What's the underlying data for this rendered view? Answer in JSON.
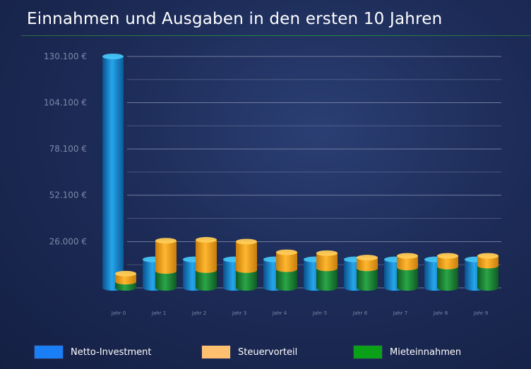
{
  "chart_data": {
    "type": "bar",
    "title": "Einnahmen und Ausgaben in den ersten 10 Jahren",
    "xlabel": "",
    "ylabel": "",
    "ylim": [
      0,
      130100
    ],
    "y_ticks": [
      26000,
      52100,
      78100,
      104100,
      130100
    ],
    "y_tick_labels": [
      "26.000 €",
      "52.100 €",
      "78.100 €",
      "104.100 €",
      "130.100 €"
    ],
    "categories": [
      "Jahr 0",
      "Jahr 1",
      "Jahr 2",
      "Jahr 3",
      "Jahr 4",
      "Jahr 5",
      "Jahr 6",
      "Jahr 7",
      "Jahr 8",
      "Jahr 9"
    ],
    "series": [
      {
        "name": "Netto-Investment",
        "color": "#1a8fe0",
        "stack": "a",
        "values": [
          130100,
          16000,
          16000,
          16000,
          16000,
          16000,
          16000,
          16000,
          16000,
          16000
        ]
      },
      {
        "name": "Mieteinnahmen",
        "color": "#1f8a3a",
        "stack": "b",
        "values": [
          3500,
          9500,
          10000,
          10000,
          10500,
          11000,
          11000,
          11500,
          12000,
          12500
        ]
      },
      {
        "name": "Steuervorteil",
        "color": "#f5a71e",
        "stack": "b",
        "values": [
          4500,
          17000,
          17000,
          16000,
          9500,
          8500,
          6000,
          6500,
          6000,
          5500
        ]
      }
    ],
    "legend_position": "bottom",
    "grid": true
  },
  "legend": [
    {
      "label": "Netto-Investment",
      "color": "#1a7ff5"
    },
    {
      "label": "Steuervorteil",
      "color": "#ffc070"
    },
    {
      "label": "Mieteinnahmen",
      "color": "#0aa018"
    }
  ]
}
